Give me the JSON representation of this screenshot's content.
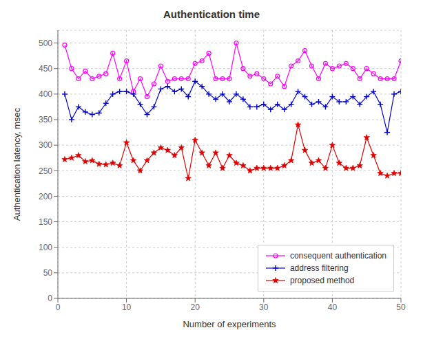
{
  "chart_data": {
    "type": "line",
    "title": "Authentication time",
    "xlabel": "Number of experiments",
    "ylabel": "Authentication latency, msec",
    "x": [
      1,
      2,
      3,
      4,
      5,
      6,
      7,
      8,
      9,
      10,
      11,
      12,
      13,
      14,
      15,
      16,
      17,
      18,
      19,
      20,
      21,
      22,
      23,
      24,
      25,
      26,
      27,
      28,
      29,
      30,
      31,
      32,
      33,
      34,
      35,
      36,
      37,
      38,
      39,
      40,
      41,
      42,
      43,
      44,
      45,
      46,
      47,
      48,
      49,
      50
    ],
    "xlim": [
      0,
      50
    ],
    "xticks": [
      0,
      10,
      20,
      30,
      40,
      50
    ],
    "ylim": [
      0,
      525
    ],
    "yticks": [
      0,
      50,
      100,
      150,
      200,
      250,
      300,
      350,
      400,
      450,
      500
    ],
    "grid": true,
    "legend": "lower right",
    "series": [
      {
        "name": "consequent authentication",
        "color": "#ff00ff",
        "marker": "circle",
        "values": [
          496,
          450,
          430,
          445,
          430,
          435,
          440,
          480,
          430,
          465,
          405,
          430,
          395,
          420,
          455,
          425,
          430,
          430,
          430,
          460,
          465,
          480,
          430,
          430,
          430,
          500,
          450,
          435,
          440,
          430,
          420,
          435,
          415,
          455,
          465,
          485,
          455,
          430,
          460,
          450,
          455,
          460,
          450,
          430,
          450,
          440,
          430,
          430,
          430,
          465
        ]
      },
      {
        "name": "address filtering",
        "color": "#0000cc",
        "marker": "plus",
        "values": [
          400,
          350,
          375,
          365,
          360,
          363,
          382,
          400,
          405,
          405,
          400,
          380,
          360,
          375,
          410,
          415,
          405,
          410,
          395,
          425,
          415,
          400,
          390,
          400,
          385,
          400,
          390,
          375,
          375,
          380,
          370,
          380,
          370,
          380,
          405,
          395,
          380,
          385,
          375,
          395,
          385,
          385,
          395,
          380,
          395,
          405,
          380,
          325,
          400,
          405
        ]
      },
      {
        "name": "proposed method",
        "color": "#dd0000",
        "marker": "star",
        "values": [
          272,
          275,
          280,
          268,
          270,
          263,
          262,
          265,
          260,
          305,
          270,
          250,
          270,
          285,
          295,
          290,
          280,
          295,
          235,
          310,
          285,
          260,
          285,
          255,
          280,
          265,
          260,
          250,
          255,
          255,
          255,
          255,
          260,
          270,
          340,
          290,
          265,
          270,
          255,
          300,
          265,
          255,
          255,
          260,
          315,
          280,
          245,
          240,
          245,
          245
        ]
      }
    ]
  }
}
